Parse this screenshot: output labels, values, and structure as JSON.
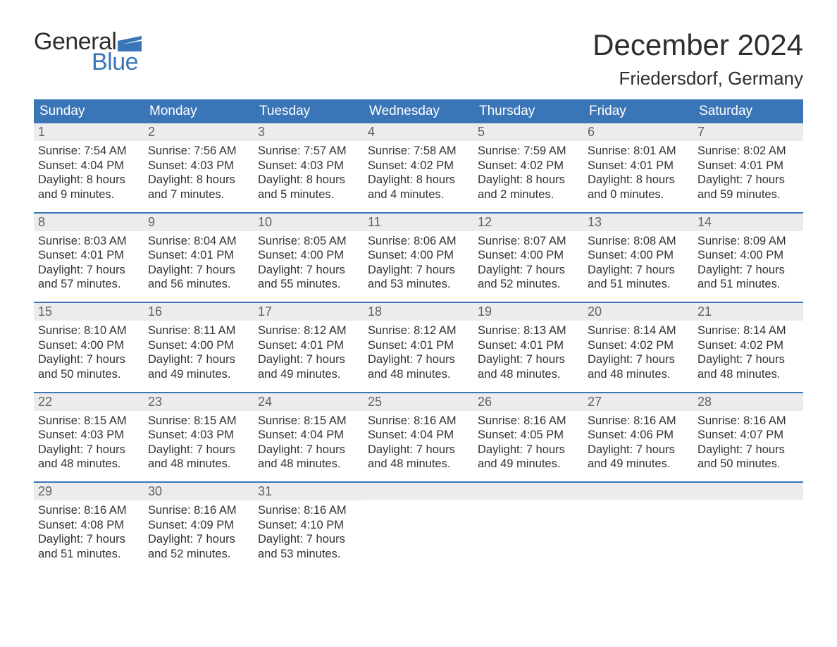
{
  "brand": {
    "general": "General",
    "blue": "Blue",
    "accent_color": "#3a76b7"
  },
  "title": "December 2024",
  "location": "Friedersdorf, Germany",
  "colors": {
    "header_bg": "#3a76b7",
    "header_text": "#ffffff",
    "daynum_bg": "#ececec",
    "daynum_text": "#616161",
    "body_text": "#323232",
    "page_bg": "#ffffff"
  },
  "typography": {
    "title_fontsize": 42,
    "subtitle_fontsize": 26,
    "dayhead_fontsize": 19,
    "daynum_fontsize": 18,
    "cell_fontsize": 16.5
  },
  "day_headers": [
    "Sunday",
    "Monday",
    "Tuesday",
    "Wednesday",
    "Thursday",
    "Friday",
    "Saturday"
  ],
  "weeks": [
    [
      {
        "n": "1",
        "sunrise": "Sunrise: 7:54 AM",
        "sunset": "Sunset: 4:04 PM",
        "d1": "Daylight: 8 hours",
        "d2": "and 9 minutes."
      },
      {
        "n": "2",
        "sunrise": "Sunrise: 7:56 AM",
        "sunset": "Sunset: 4:03 PM",
        "d1": "Daylight: 8 hours",
        "d2": "and 7 minutes."
      },
      {
        "n": "3",
        "sunrise": "Sunrise: 7:57 AM",
        "sunset": "Sunset: 4:03 PM",
        "d1": "Daylight: 8 hours",
        "d2": "and 5 minutes."
      },
      {
        "n": "4",
        "sunrise": "Sunrise: 7:58 AM",
        "sunset": "Sunset: 4:02 PM",
        "d1": "Daylight: 8 hours",
        "d2": "and 4 minutes."
      },
      {
        "n": "5",
        "sunrise": "Sunrise: 7:59 AM",
        "sunset": "Sunset: 4:02 PM",
        "d1": "Daylight: 8 hours",
        "d2": "and 2 minutes."
      },
      {
        "n": "6",
        "sunrise": "Sunrise: 8:01 AM",
        "sunset": "Sunset: 4:01 PM",
        "d1": "Daylight: 8 hours",
        "d2": "and 0 minutes."
      },
      {
        "n": "7",
        "sunrise": "Sunrise: 8:02 AM",
        "sunset": "Sunset: 4:01 PM",
        "d1": "Daylight: 7 hours",
        "d2": "and 59 minutes."
      }
    ],
    [
      {
        "n": "8",
        "sunrise": "Sunrise: 8:03 AM",
        "sunset": "Sunset: 4:01 PM",
        "d1": "Daylight: 7 hours",
        "d2": "and 57 minutes."
      },
      {
        "n": "9",
        "sunrise": "Sunrise: 8:04 AM",
        "sunset": "Sunset: 4:01 PM",
        "d1": "Daylight: 7 hours",
        "d2": "and 56 minutes."
      },
      {
        "n": "10",
        "sunrise": "Sunrise: 8:05 AM",
        "sunset": "Sunset: 4:00 PM",
        "d1": "Daylight: 7 hours",
        "d2": "and 55 minutes."
      },
      {
        "n": "11",
        "sunrise": "Sunrise: 8:06 AM",
        "sunset": "Sunset: 4:00 PM",
        "d1": "Daylight: 7 hours",
        "d2": "and 53 minutes."
      },
      {
        "n": "12",
        "sunrise": "Sunrise: 8:07 AM",
        "sunset": "Sunset: 4:00 PM",
        "d1": "Daylight: 7 hours",
        "d2": "and 52 minutes."
      },
      {
        "n": "13",
        "sunrise": "Sunrise: 8:08 AM",
        "sunset": "Sunset: 4:00 PM",
        "d1": "Daylight: 7 hours",
        "d2": "and 51 minutes."
      },
      {
        "n": "14",
        "sunrise": "Sunrise: 8:09 AM",
        "sunset": "Sunset: 4:00 PM",
        "d1": "Daylight: 7 hours",
        "d2": "and 51 minutes."
      }
    ],
    [
      {
        "n": "15",
        "sunrise": "Sunrise: 8:10 AM",
        "sunset": "Sunset: 4:00 PM",
        "d1": "Daylight: 7 hours",
        "d2": "and 50 minutes."
      },
      {
        "n": "16",
        "sunrise": "Sunrise: 8:11 AM",
        "sunset": "Sunset: 4:00 PM",
        "d1": "Daylight: 7 hours",
        "d2": "and 49 minutes."
      },
      {
        "n": "17",
        "sunrise": "Sunrise: 8:12 AM",
        "sunset": "Sunset: 4:01 PM",
        "d1": "Daylight: 7 hours",
        "d2": "and 49 minutes."
      },
      {
        "n": "18",
        "sunrise": "Sunrise: 8:12 AM",
        "sunset": "Sunset: 4:01 PM",
        "d1": "Daylight: 7 hours",
        "d2": "and 48 minutes."
      },
      {
        "n": "19",
        "sunrise": "Sunrise: 8:13 AM",
        "sunset": "Sunset: 4:01 PM",
        "d1": "Daylight: 7 hours",
        "d2": "and 48 minutes."
      },
      {
        "n": "20",
        "sunrise": "Sunrise: 8:14 AM",
        "sunset": "Sunset: 4:02 PM",
        "d1": "Daylight: 7 hours",
        "d2": "and 48 minutes."
      },
      {
        "n": "21",
        "sunrise": "Sunrise: 8:14 AM",
        "sunset": "Sunset: 4:02 PM",
        "d1": "Daylight: 7 hours",
        "d2": "and 48 minutes."
      }
    ],
    [
      {
        "n": "22",
        "sunrise": "Sunrise: 8:15 AM",
        "sunset": "Sunset: 4:03 PM",
        "d1": "Daylight: 7 hours",
        "d2": "and 48 minutes."
      },
      {
        "n": "23",
        "sunrise": "Sunrise: 8:15 AM",
        "sunset": "Sunset: 4:03 PM",
        "d1": "Daylight: 7 hours",
        "d2": "and 48 minutes."
      },
      {
        "n": "24",
        "sunrise": "Sunrise: 8:15 AM",
        "sunset": "Sunset: 4:04 PM",
        "d1": "Daylight: 7 hours",
        "d2": "and 48 minutes."
      },
      {
        "n": "25",
        "sunrise": "Sunrise: 8:16 AM",
        "sunset": "Sunset: 4:04 PM",
        "d1": "Daylight: 7 hours",
        "d2": "and 48 minutes."
      },
      {
        "n": "26",
        "sunrise": "Sunrise: 8:16 AM",
        "sunset": "Sunset: 4:05 PM",
        "d1": "Daylight: 7 hours",
        "d2": "and 49 minutes."
      },
      {
        "n": "27",
        "sunrise": "Sunrise: 8:16 AM",
        "sunset": "Sunset: 4:06 PM",
        "d1": "Daylight: 7 hours",
        "d2": "and 49 minutes."
      },
      {
        "n": "28",
        "sunrise": "Sunrise: 8:16 AM",
        "sunset": "Sunset: 4:07 PM",
        "d1": "Daylight: 7 hours",
        "d2": "and 50 minutes."
      }
    ],
    [
      {
        "n": "29",
        "sunrise": "Sunrise: 8:16 AM",
        "sunset": "Sunset: 4:08 PM",
        "d1": "Daylight: 7 hours",
        "d2": "and 51 minutes."
      },
      {
        "n": "30",
        "sunrise": "Sunrise: 8:16 AM",
        "sunset": "Sunset: 4:09 PM",
        "d1": "Daylight: 7 hours",
        "d2": "and 52 minutes."
      },
      {
        "n": "31",
        "sunrise": "Sunrise: 8:16 AM",
        "sunset": "Sunset: 4:10 PM",
        "d1": "Daylight: 7 hours",
        "d2": "and 53 minutes."
      },
      {
        "empty": true
      },
      {
        "empty": true
      },
      {
        "empty": true
      },
      {
        "empty": true
      }
    ]
  ]
}
